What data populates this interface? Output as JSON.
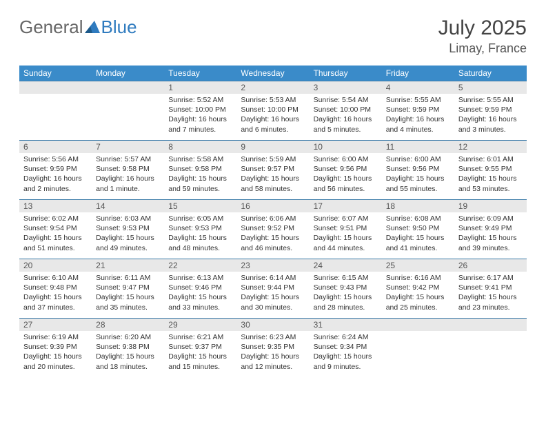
{
  "logo": {
    "text_general": "General",
    "text_blue": "Blue"
  },
  "title": "July 2025",
  "location": "Limay, France",
  "day_headers": [
    "Sunday",
    "Monday",
    "Tuesday",
    "Wednesday",
    "Thursday",
    "Friday",
    "Saturday"
  ],
  "colors": {
    "header_bg": "#3a8bc9",
    "header_text": "#ffffff",
    "row_border": "#3a7aa8",
    "daynum_bg": "#e8e8e8",
    "text": "#333333",
    "logo_blue": "#2f7bbf"
  },
  "weeks": [
    [
      null,
      null,
      {
        "n": "1",
        "sunrise": "5:52 AM",
        "sunset": "10:00 PM",
        "daylight": "16 hours and 7 minutes."
      },
      {
        "n": "2",
        "sunrise": "5:53 AM",
        "sunset": "10:00 PM",
        "daylight": "16 hours and 6 minutes."
      },
      {
        "n": "3",
        "sunrise": "5:54 AM",
        "sunset": "10:00 PM",
        "daylight": "16 hours and 5 minutes."
      },
      {
        "n": "4",
        "sunrise": "5:55 AM",
        "sunset": "9:59 PM",
        "daylight": "16 hours and 4 minutes."
      },
      {
        "n": "5",
        "sunrise": "5:55 AM",
        "sunset": "9:59 PM",
        "daylight": "16 hours and 3 minutes."
      }
    ],
    [
      {
        "n": "6",
        "sunrise": "5:56 AM",
        "sunset": "9:59 PM",
        "daylight": "16 hours and 2 minutes."
      },
      {
        "n": "7",
        "sunrise": "5:57 AM",
        "sunset": "9:58 PM",
        "daylight": "16 hours and 1 minute."
      },
      {
        "n": "8",
        "sunrise": "5:58 AM",
        "sunset": "9:58 PM",
        "daylight": "15 hours and 59 minutes."
      },
      {
        "n": "9",
        "sunrise": "5:59 AM",
        "sunset": "9:57 PM",
        "daylight": "15 hours and 58 minutes."
      },
      {
        "n": "10",
        "sunrise": "6:00 AM",
        "sunset": "9:56 PM",
        "daylight": "15 hours and 56 minutes."
      },
      {
        "n": "11",
        "sunrise": "6:00 AM",
        "sunset": "9:56 PM",
        "daylight": "15 hours and 55 minutes."
      },
      {
        "n": "12",
        "sunrise": "6:01 AM",
        "sunset": "9:55 PM",
        "daylight": "15 hours and 53 minutes."
      }
    ],
    [
      {
        "n": "13",
        "sunrise": "6:02 AM",
        "sunset": "9:54 PM",
        "daylight": "15 hours and 51 minutes."
      },
      {
        "n": "14",
        "sunrise": "6:03 AM",
        "sunset": "9:53 PM",
        "daylight": "15 hours and 49 minutes."
      },
      {
        "n": "15",
        "sunrise": "6:05 AM",
        "sunset": "9:53 PM",
        "daylight": "15 hours and 48 minutes."
      },
      {
        "n": "16",
        "sunrise": "6:06 AM",
        "sunset": "9:52 PM",
        "daylight": "15 hours and 46 minutes."
      },
      {
        "n": "17",
        "sunrise": "6:07 AM",
        "sunset": "9:51 PM",
        "daylight": "15 hours and 44 minutes."
      },
      {
        "n": "18",
        "sunrise": "6:08 AM",
        "sunset": "9:50 PM",
        "daylight": "15 hours and 41 minutes."
      },
      {
        "n": "19",
        "sunrise": "6:09 AM",
        "sunset": "9:49 PM",
        "daylight": "15 hours and 39 minutes."
      }
    ],
    [
      {
        "n": "20",
        "sunrise": "6:10 AM",
        "sunset": "9:48 PM",
        "daylight": "15 hours and 37 minutes."
      },
      {
        "n": "21",
        "sunrise": "6:11 AM",
        "sunset": "9:47 PM",
        "daylight": "15 hours and 35 minutes."
      },
      {
        "n": "22",
        "sunrise": "6:13 AM",
        "sunset": "9:46 PM",
        "daylight": "15 hours and 33 minutes."
      },
      {
        "n": "23",
        "sunrise": "6:14 AM",
        "sunset": "9:44 PM",
        "daylight": "15 hours and 30 minutes."
      },
      {
        "n": "24",
        "sunrise": "6:15 AM",
        "sunset": "9:43 PM",
        "daylight": "15 hours and 28 minutes."
      },
      {
        "n": "25",
        "sunrise": "6:16 AM",
        "sunset": "9:42 PM",
        "daylight": "15 hours and 25 minutes."
      },
      {
        "n": "26",
        "sunrise": "6:17 AM",
        "sunset": "9:41 PM",
        "daylight": "15 hours and 23 minutes."
      }
    ],
    [
      {
        "n": "27",
        "sunrise": "6:19 AM",
        "sunset": "9:39 PM",
        "daylight": "15 hours and 20 minutes."
      },
      {
        "n": "28",
        "sunrise": "6:20 AM",
        "sunset": "9:38 PM",
        "daylight": "15 hours and 18 minutes."
      },
      {
        "n": "29",
        "sunrise": "6:21 AM",
        "sunset": "9:37 PM",
        "daylight": "15 hours and 15 minutes."
      },
      {
        "n": "30",
        "sunrise": "6:23 AM",
        "sunset": "9:35 PM",
        "daylight": "15 hours and 12 minutes."
      },
      {
        "n": "31",
        "sunrise": "6:24 AM",
        "sunset": "9:34 PM",
        "daylight": "15 hours and 9 minutes."
      },
      null,
      null
    ]
  ],
  "labels": {
    "sunrise": "Sunrise:",
    "sunset": "Sunset:",
    "daylight": "Daylight:"
  }
}
